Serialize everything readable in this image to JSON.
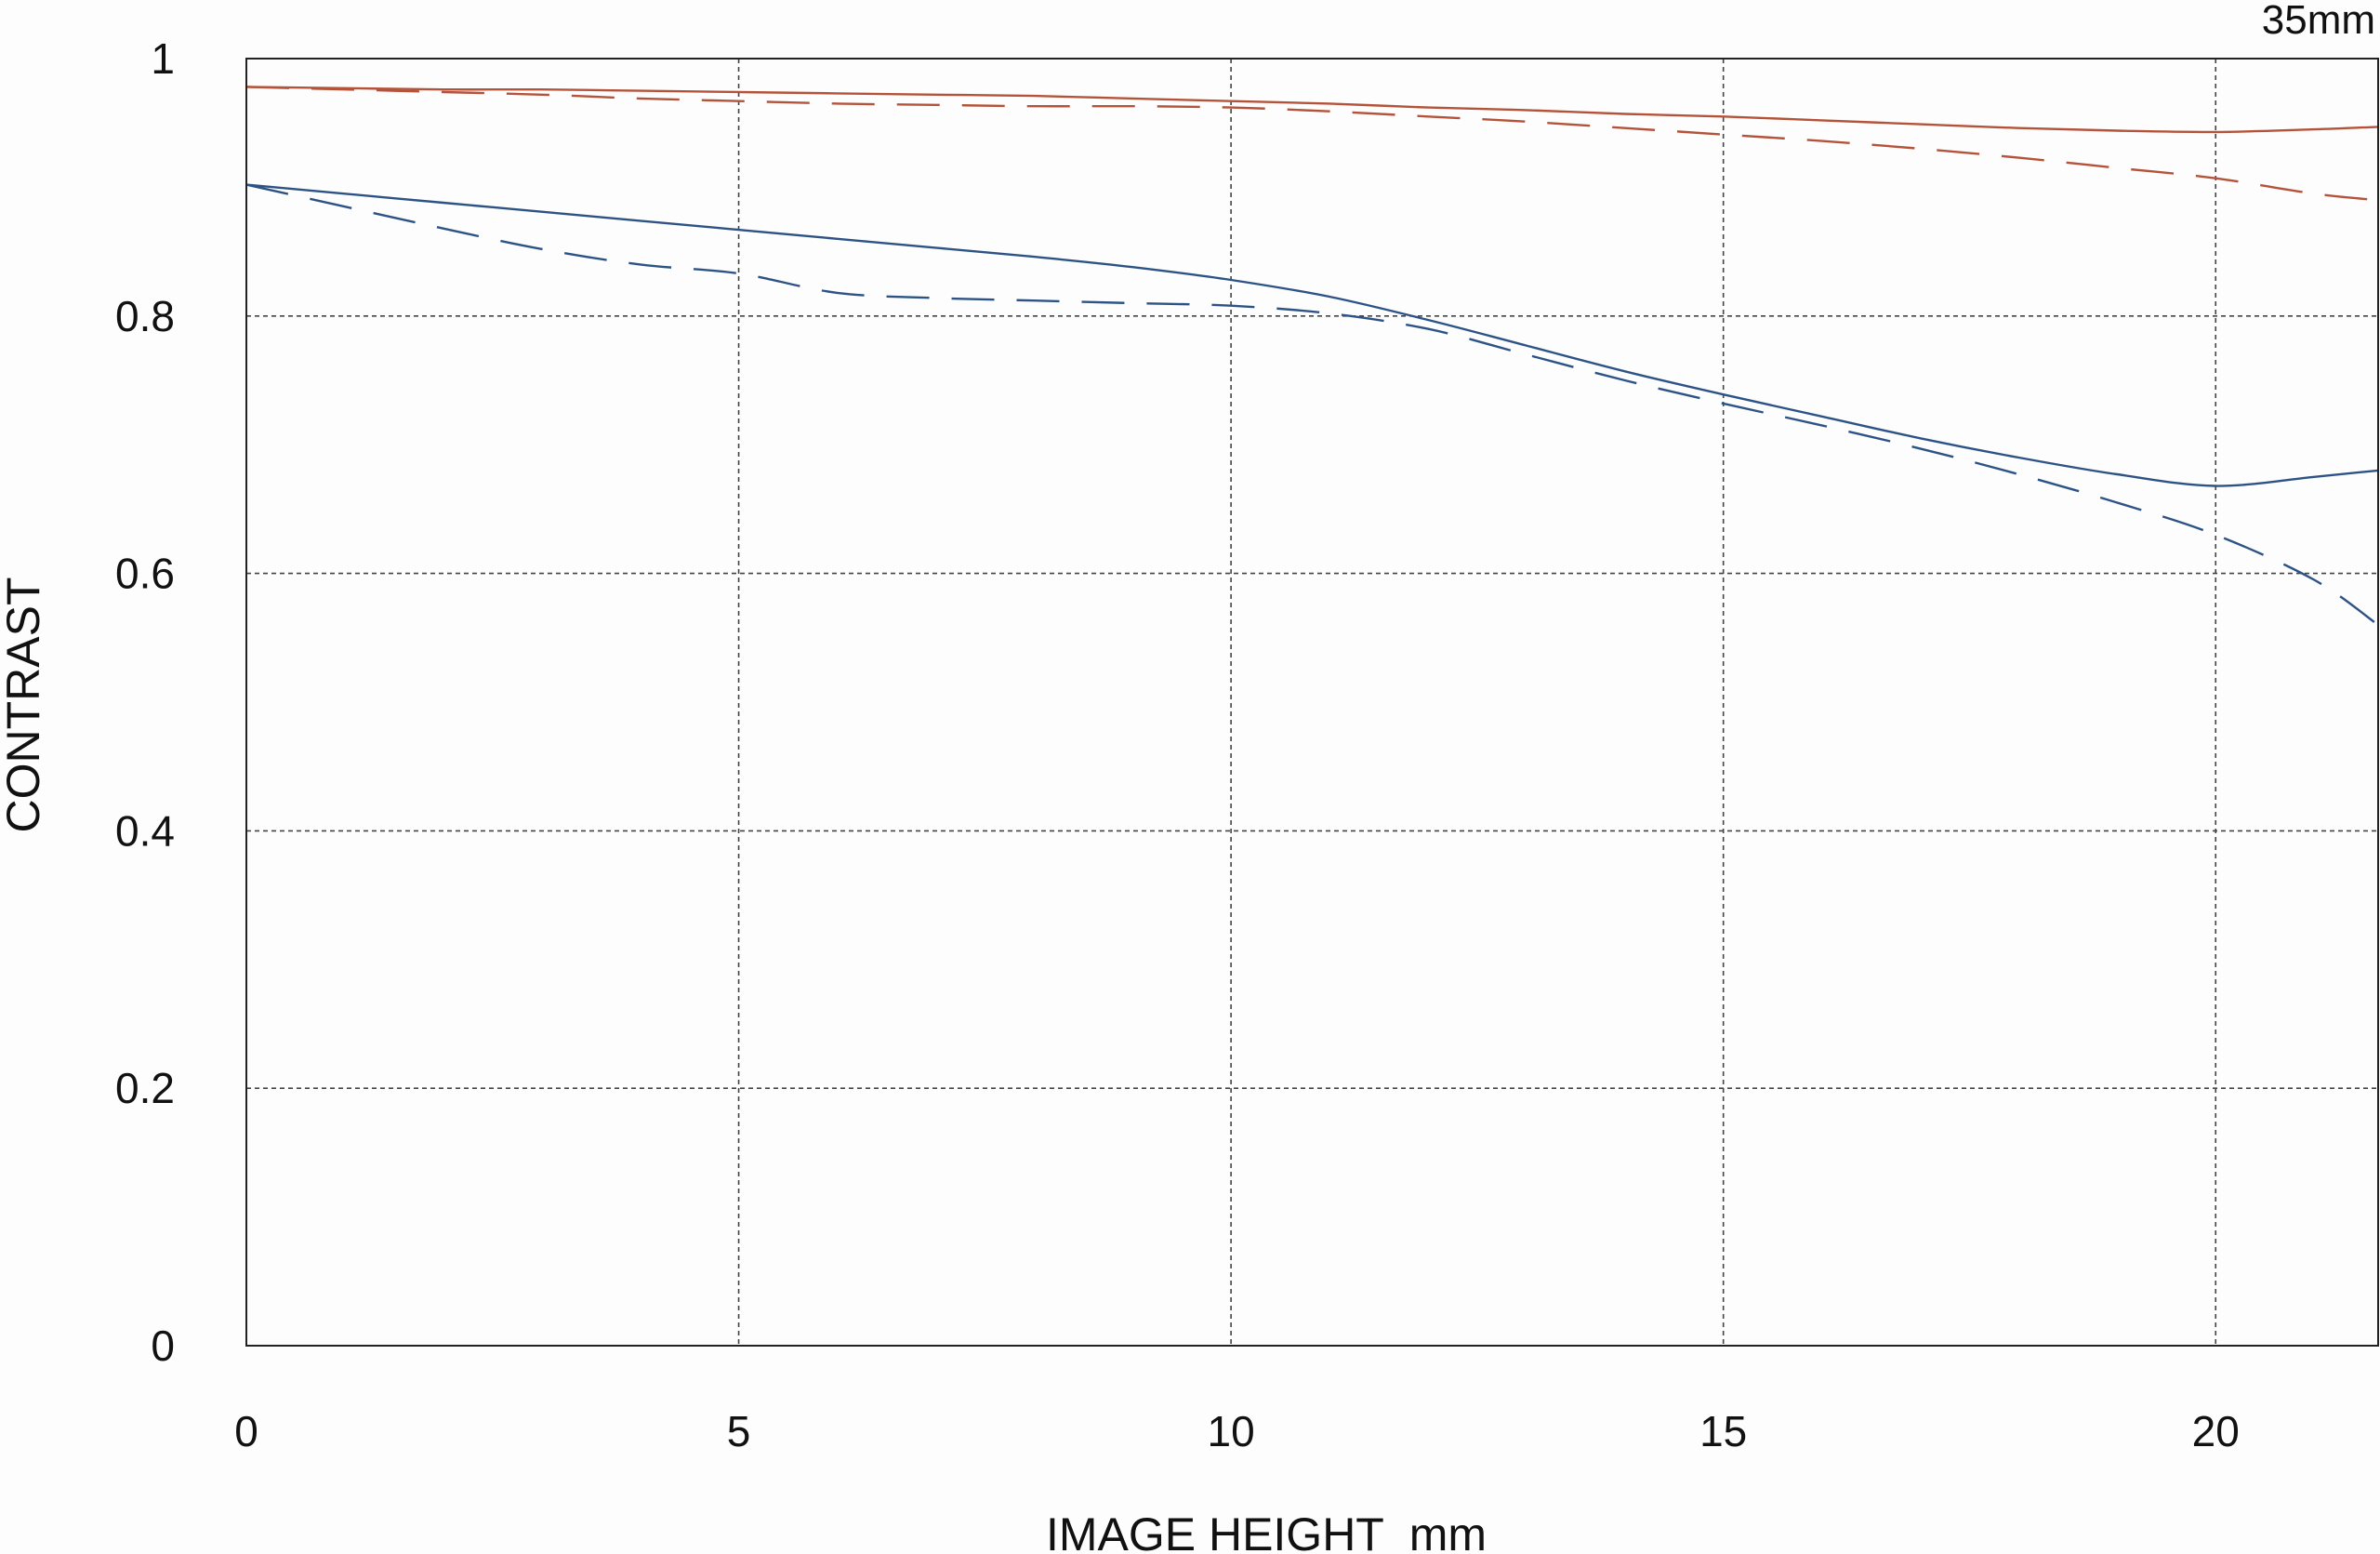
{
  "chart_data": {
    "type": "line",
    "title": "",
    "corner_label": "35mm",
    "xlabel": "IMAGE HEIGHT  mm",
    "ylabel": "CONTRAST",
    "xlim": [
      0,
      21.65
    ],
    "ylim": [
      0,
      1
    ],
    "xticks": [
      0,
      5,
      10,
      15,
      20
    ],
    "xtick_labels": [
      "0",
      "5",
      "10",
      "15",
      "20"
    ],
    "yticks": [
      0,
      0.2,
      0.4,
      0.6,
      0.8,
      1
    ],
    "ytick_labels": [
      "0",
      "0.2",
      "0.4",
      "0.6",
      "0.8",
      "1"
    ],
    "grid": true,
    "legend": "none",
    "x": [
      0,
      1,
      2,
      3,
      4,
      5,
      6,
      7,
      8,
      9,
      10,
      11,
      12,
      13,
      14,
      15,
      16,
      17,
      18,
      19,
      20,
      21,
      21.65
    ],
    "series": [
      {
        "color": "#b5533a",
        "style": "solid",
        "values": [
          0.978,
          0.977,
          0.976,
          0.976,
          0.975,
          0.974,
          0.973,
          0.972,
          0.971,
          0.969,
          0.967,
          0.965,
          0.962,
          0.96,
          0.957,
          0.955,
          0.952,
          0.949,
          0.946,
          0.944,
          0.943,
          0.945,
          0.947
        ]
      },
      {
        "color": "#b5533a",
        "style": "dashed",
        "values": [
          0.978,
          0.976,
          0.974,
          0.972,
          0.969,
          0.967,
          0.965,
          0.964,
          0.963,
          0.963,
          0.962,
          0.959,
          0.955,
          0.951,
          0.946,
          0.941,
          0.936,
          0.93,
          0.923,
          0.915,
          0.907,
          0.895,
          0.89
        ]
      },
      {
        "color": "#2d5386",
        "style": "solid",
        "values": [
          0.902,
          0.895,
          0.888,
          0.881,
          0.874,
          0.867,
          0.86,
          0.853,
          0.846,
          0.838,
          0.828,
          0.815,
          0.797,
          0.777,
          0.757,
          0.739,
          0.722,
          0.705,
          0.69,
          0.677,
          0.668,
          0.675,
          0.68
        ]
      },
      {
        "color": "#2d5386",
        "style": "dashed",
        "values": [
          0.902,
          0.885,
          0.868,
          0.852,
          0.84,
          0.833,
          0.818,
          0.814,
          0.812,
          0.81,
          0.808,
          0.802,
          0.79,
          0.77,
          0.75,
          0.732,
          0.715,
          0.697,
          0.677,
          0.655,
          0.63,
          0.595,
          0.56
        ]
      }
    ]
  }
}
